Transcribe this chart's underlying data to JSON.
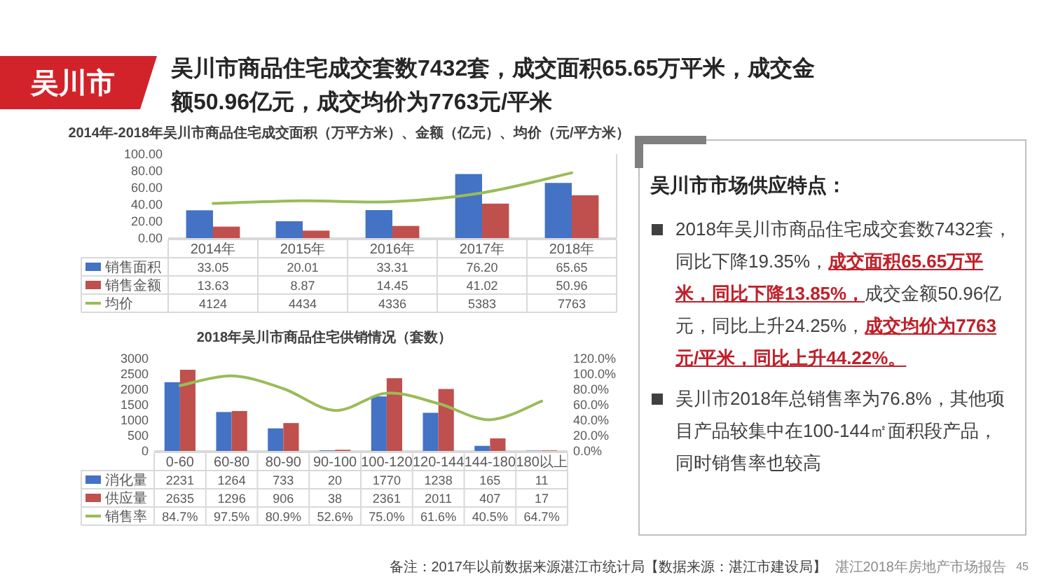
{
  "chart_data": [
    {
      "type": "other",
      "title": "吴川市",
      "subtitle": "吴川市商品住宅成交套数7432套，成交面积65.65万平米，成交金额50.96亿元，成交均价为7763元/平米",
      "annotations": [
        "备注：2017年以前数据来源湛江市统计局【数据来源：湛江市建设局】",
        "湛江2018年房地产市场报告",
        "45"
      ]
    },
    {
      "type": "bar",
      "title": "2014年-2018年吴川市商品住宅成交面积（万平方米）、金额（亿元）、均价（元/平方米）",
      "categories": [
        "2014年",
        "2015年",
        "2016年",
        "2017年",
        "2018年"
      ],
      "series": [
        {
          "name": "销售面积",
          "color": "#4472c4",
          "values": [
            33.05,
            20.01,
            33.31,
            76.2,
            65.65
          ],
          "value_labels": [
            "33.05",
            "20.01",
            "33.31",
            "76.20",
            "65.65"
          ]
        },
        {
          "name": "销售金额",
          "color": "#c0504d",
          "values": [
            13.63,
            8.87,
            14.45,
            41.02,
            50.96
          ],
          "value_labels": [
            "13.63",
            "8.87",
            "14.45",
            "41.02",
            "50.96"
          ]
        },
        {
          "name": "均价",
          "type": "line",
          "axis": "y2",
          "color": "#9bbb59",
          "values": [
            4124,
            4434,
            4336,
            5383,
            7763
          ],
          "value_labels": [
            "4124",
            "4434",
            "4336",
            "5383",
            "7763"
          ]
        }
      ],
      "ylim": [
        0,
        100
      ],
      "yticks": [
        {
          "value": 0,
          "label": "0.00"
        },
        {
          "value": 20,
          "label": "20.00"
        },
        {
          "value": 40,
          "label": "40.00"
        },
        {
          "value": 60,
          "label": "60.00"
        },
        {
          "value": 80,
          "label": "80.00"
        },
        {
          "value": 100,
          "label": "100.00"
        }
      ],
      "y2lim": [
        0,
        10000
      ],
      "legend": "bottom"
    },
    {
      "type": "other",
      "title": "吴川市市场供应特点：",
      "annotations": [
        "2018年吴川市商品住宅成交套数7432套，同比下降19.35%，**成交面积65.65万平米，同比下降13.85%，**成交金额50.96亿元，同比上升24.25%，**成交均价为7763元/平米，同比上升44.22%。**",
        "吴川市2018年总销售率为76.8%，其他项目产品较集中在100-144㎡面积段产品，同时销售率也较高"
      ]
    },
    {
      "type": "bar",
      "title": "2018年吴川市商品住宅供销情况（套数）",
      "categories": [
        "0-60",
        "60-80",
        "80-90",
        "90-100",
        "100-120",
        "120-144",
        "144-180",
        "180以上"
      ],
      "series": [
        {
          "name": "消化量",
          "color": "#4472c4",
          "values": [
            2231,
            1264,
            733,
            20,
            1770,
            1238,
            165,
            11
          ],
          "value_labels": [
            "2231",
            "1264",
            "733",
            "20",
            "1770",
            "1238",
            "165",
            "11"
          ]
        },
        {
          "name": "供应量",
          "color": "#c0504d",
          "values": [
            2635,
            1296,
            906,
            38,
            2361,
            2011,
            407,
            17
          ],
          "value_labels": [
            "2635",
            "1296",
            "906",
            "38",
            "2361",
            "2011",
            "407",
            "17"
          ]
        },
        {
          "name": "销售率",
          "type": "line",
          "axis": "y2",
          "color": "#9bbb59",
          "values": [
            84.7,
            97.5,
            80.9,
            52.6,
            75.0,
            61.6,
            40.5,
            64.7
          ],
          "value_labels": [
            "84.7%",
            "97.5%",
            "80.9%",
            "52.6%",
            "75.0%",
            "61.6%",
            "40.5%",
            "64.7%"
          ]
        }
      ],
      "ylim": [
        0,
        3000
      ],
      "yticks": [
        0,
        500,
        1000,
        1500,
        2000,
        2500,
        3000
      ],
      "y2lim": [
        0,
        120
      ],
      "y2ticks": [
        {
          "value": 0,
          "label": "0.0%"
        },
        {
          "value": 20,
          "label": "20.0%"
        },
        {
          "value": 40,
          "label": "40.0%"
        },
        {
          "value": 60,
          "label": "60.0%"
        },
        {
          "value": 80,
          "label": "80.0%"
        },
        {
          "value": 100,
          "label": "100.0%"
        },
        {
          "value": 120,
          "label": "120.0%"
        }
      ],
      "legend": "bottom"
    }
  ]
}
